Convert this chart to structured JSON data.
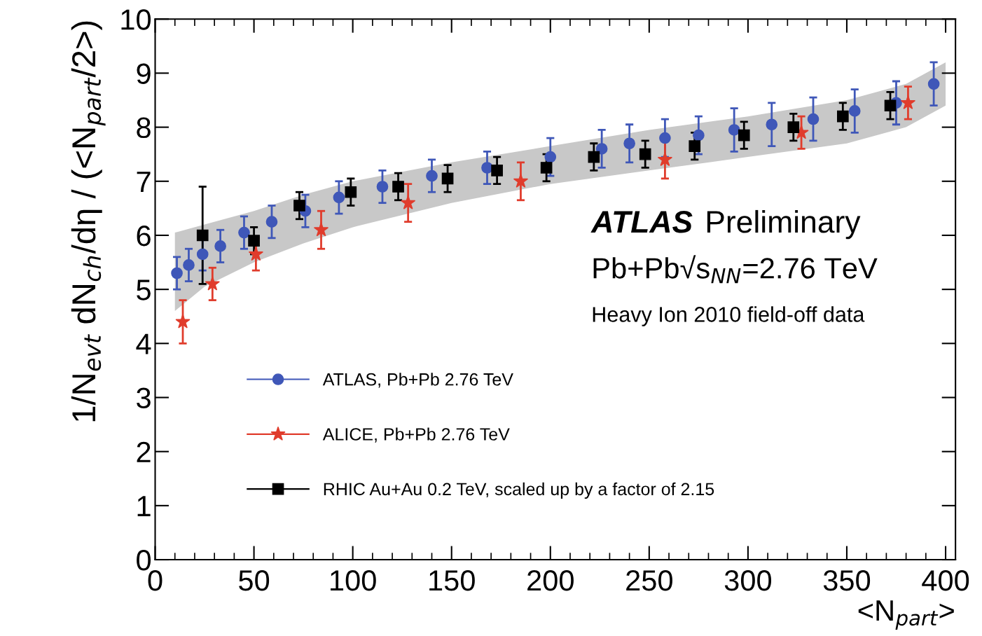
{
  "chart_data": {
    "type": "scatter",
    "xlabel": "<N$_{part}$>",
    "ylabel": "1/N$_{evt}$ dN$_{ch}$/dη / (<N$_{part}$/2>)",
    "xlim": [
      0,
      405
    ],
    "xticks": [
      0,
      50,
      100,
      150,
      200,
      250,
      300,
      350,
      400
    ],
    "ylim": [
      0,
      10
    ],
    "yticks": [
      0,
      1,
      2,
      3,
      4,
      5,
      6,
      7,
      8,
      9,
      10
    ],
    "grid": false,
    "legend": "bottom left",
    "annotations": [
      "ATLAS Preliminary",
      "Pb+Pb√s$_{NN}$=2.76 TeV",
      "Heavy Ion 2010 field-off data"
    ],
    "series": [
      {
        "type": "area",
        "color": "#c8c8c8",
        "x": [
          10,
          25,
          50,
          75,
          100,
          150,
          200,
          250,
          300,
          350,
          380,
          400
        ],
        "values": [
          null,
          null,
          null,
          null,
          null,
          null,
          null,
          null,
          null,
          null,
          null,
          null
        ],
        "lower": [
          4.6,
          5.05,
          5.5,
          5.85,
          6.15,
          6.6,
          6.95,
          7.2,
          7.45,
          7.7,
          8.0,
          8.4
        ],
        "upper": [
          6.05,
          6.2,
          6.45,
          6.75,
          7.0,
          7.35,
          7.65,
          7.95,
          8.2,
          8.5,
          8.8,
          9.2
        ]
      },
      {
        "name": "ATLAS, Pb+Pb 2.76 TeV",
        "color": "#3f57b8",
        "marker": "circle",
        "x": [
          11,
          17,
          24,
          33,
          45,
          59,
          76,
          93,
          115,
          140,
          168,
          200,
          226,
          240,
          258,
          275,
          293,
          312,
          333,
          354,
          375,
          394
        ],
        "values": [
          5.3,
          5.45,
          5.65,
          5.8,
          6.05,
          6.25,
          6.45,
          6.7,
          6.9,
          7.1,
          7.25,
          7.45,
          7.6,
          7.7,
          7.8,
          7.85,
          7.95,
          8.05,
          8.15,
          8.3,
          8.45,
          8.8
        ],
        "errors": [
          0.3,
          0.3,
          0.3,
          0.3,
          0.3,
          0.3,
          0.3,
          0.3,
          0.3,
          0.3,
          0.3,
          0.35,
          0.35,
          0.35,
          0.35,
          0.35,
          0.4,
          0.4,
          0.4,
          0.4,
          0.4,
          0.4
        ]
      },
      {
        "name": "ALICE, Pb+Pb 2.76 TeV",
        "color": "#e03c2c",
        "marker": "star",
        "x": [
          14,
          29,
          51,
          84,
          128,
          185,
          258,
          327,
          381
        ],
        "values": [
          4.4,
          5.1,
          5.65,
          6.1,
          6.6,
          7.0,
          7.4,
          7.9,
          8.45
        ],
        "errors": [
          0.4,
          0.3,
          0.3,
          0.35,
          0.35,
          0.35,
          0.35,
          0.3,
          0.3
        ]
      },
      {
        "name": "RHIC Au+Au 0.2 TeV, scaled up by a factor of 2.15",
        "color": "#000000",
        "marker": "square",
        "x": [
          24,
          50,
          73,
          99,
          123,
          148,
          173,
          198,
          222,
          248,
          273,
          298,
          323,
          348,
          372
        ],
        "values": [
          6.0,
          5.9,
          6.55,
          6.8,
          6.9,
          7.05,
          7.2,
          7.25,
          7.45,
          7.5,
          7.65,
          7.85,
          8.0,
          8.2,
          8.4
        ],
        "errors": [
          0.9,
          0.25,
          0.25,
          0.25,
          0.25,
          0.25,
          0.25,
          0.25,
          0.25,
          0.25,
          0.25,
          0.25,
          0.25,
          0.25,
          0.25
        ]
      }
    ]
  }
}
